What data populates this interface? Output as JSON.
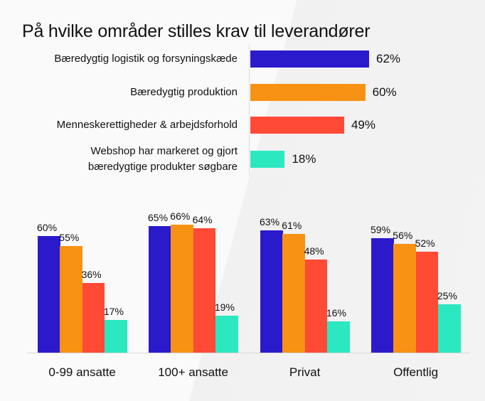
{
  "chart_data": [
    {
      "type": "bar",
      "orientation": "horizontal",
      "title": "På hvilke områder stilles krav til leverandører",
      "categories": [
        "Bæredygtig logistik og forsyningskæde",
        "Bæredygtig produktion",
        "Menneskerettigheder & arbejdsforhold",
        "Webshop har markeret og gjort bæredygtige produkter søgbare"
      ],
      "category_lines": [
        [
          "Bæredygtig logistik og forsyningskæde"
        ],
        [
          "Bæredygtig produktion"
        ],
        [
          "Menneskerettigheder & arbejdsforhold"
        ],
        [
          "Webshop har markeret og gjort",
          "bæredygtige produkter søgbare"
        ]
      ],
      "values": [
        62,
        60,
        49,
        18
      ],
      "value_labels": [
        "62%",
        "60%",
        "49%",
        "18%"
      ],
      "colors": [
        "#2B1ACB",
        "#F79214",
        "#FF4A36",
        "#2CE8C0"
      ],
      "xlim": [
        0,
        100
      ],
      "grid": false
    },
    {
      "type": "bar",
      "orientation": "vertical",
      "categories": [
        "0-99 ansatte",
        "100+ ansatte",
        "Privat",
        "Offentlig"
      ],
      "series": [
        {
          "name": "Bæredygtig logistik og forsyningskæde",
          "color": "#2B1ACB",
          "values": [
            60,
            65,
            63,
            59
          ],
          "labels": [
            "60%",
            "65%",
            "63%",
            "59%"
          ]
        },
        {
          "name": "Bæredygtig produktion",
          "color": "#F79214",
          "values": [
            55,
            66,
            61,
            56
          ],
          "labels": [
            "55%",
            "66%",
            "61%",
            "56%"
          ]
        },
        {
          "name": "Menneskerettigheder & arbejdsforhold",
          "color": "#FF4A36",
          "values": [
            36,
            64,
            48,
            52
          ],
          "labels": [
            "36%",
            "64%",
            "48%",
            "52%"
          ]
        },
        {
          "name": "Webshop har markeret og gjort bæredygtige produkter søgbare",
          "color": "#2CE8C0",
          "values": [
            17,
            19,
            16,
            25
          ],
          "labels": [
            "17%",
            "19%",
            "16%",
            "25%"
          ]
        }
      ],
      "ylim": [
        0,
        100
      ],
      "grid": false,
      "legend": "none"
    }
  ]
}
